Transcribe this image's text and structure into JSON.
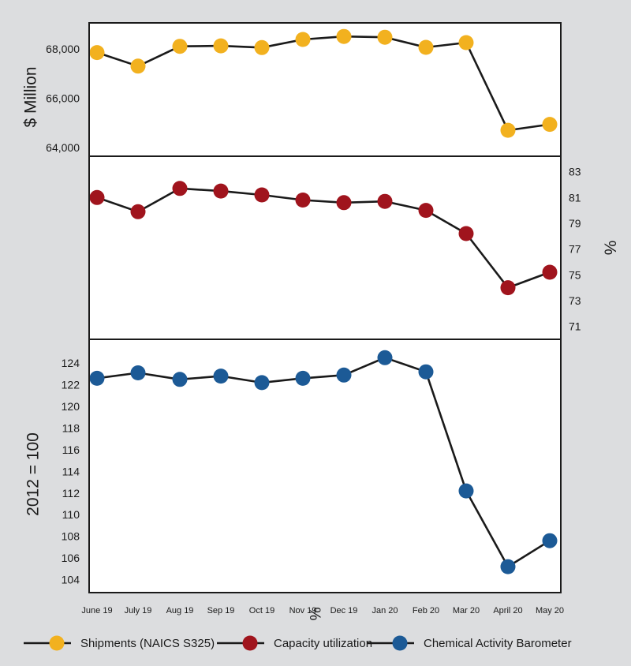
{
  "chart_data": [
    {
      "type": "line",
      "id": "shipments",
      "series_name": "Shipments (NAICS S325)",
      "color": "#f2b11f",
      "ylabel": "$ Million",
      "axis_side": "left",
      "ylim": [
        63650,
        69050
      ],
      "yticks": [
        64000,
        66000,
        68000
      ],
      "ytick_labels": [
        "64,000",
        "66,000",
        "68,000"
      ],
      "values": [
        67850,
        67300,
        68100,
        68120,
        68050,
        68380,
        68500,
        68470,
        68060,
        68250,
        64700,
        64940
      ]
    },
    {
      "type": "line",
      "id": "capacity",
      "series_name": "Capacity utilization",
      "color": "#a0141d",
      "ylabel": "%",
      "axis_side": "right",
      "ylim": [
        70.0,
        84.2
      ],
      "yticks": [
        71,
        73,
        75,
        77,
        79,
        81,
        83
      ],
      "ytick_labels": [
        "71",
        "73",
        "75",
        "77",
        "79",
        "81",
        "83"
      ],
      "values": [
        81.0,
        79.9,
        81.7,
        81.5,
        81.2,
        80.8,
        80.6,
        80.7,
        80.0,
        78.2,
        74.0,
        75.2
      ]
    },
    {
      "type": "line",
      "id": "cab",
      "series_name": "Chemical Activity Barometer",
      "color": "#1c5a96",
      "ylabel": "2012 = 100",
      "axis_side": "left",
      "ylim": [
        102.8,
        126.2
      ],
      "yticks": [
        104,
        106,
        108,
        110,
        112,
        114,
        116,
        118,
        120,
        122,
        124
      ],
      "ytick_labels": [
        "104",
        "106",
        "108",
        "110",
        "112",
        "114",
        "116",
        "118",
        "120",
        "122",
        "124"
      ],
      "values": [
        122.6,
        123.1,
        122.5,
        122.8,
        122.2,
        122.6,
        122.9,
        124.5,
        123.2,
        112.2,
        105.2,
        107.6
      ]
    }
  ],
  "categories": [
    "June 19",
    "July 19",
    "Aug 19",
    "Sep 19",
    "Oct 19",
    "Nov 19",
    "Dec 19",
    "Jan 20",
    "Feb 20",
    "Mar 20",
    "April 20",
    "May 20"
  ],
  "stray_label": "%",
  "legend": [
    {
      "label": "Shipments (NAICS S325)",
      "color": "#f2b11f"
    },
    {
      "label": "Capacity utilization",
      "color": "#a0141d"
    },
    {
      "label": "Chemical Activity Barometer",
      "color": "#1c5a96"
    }
  ]
}
